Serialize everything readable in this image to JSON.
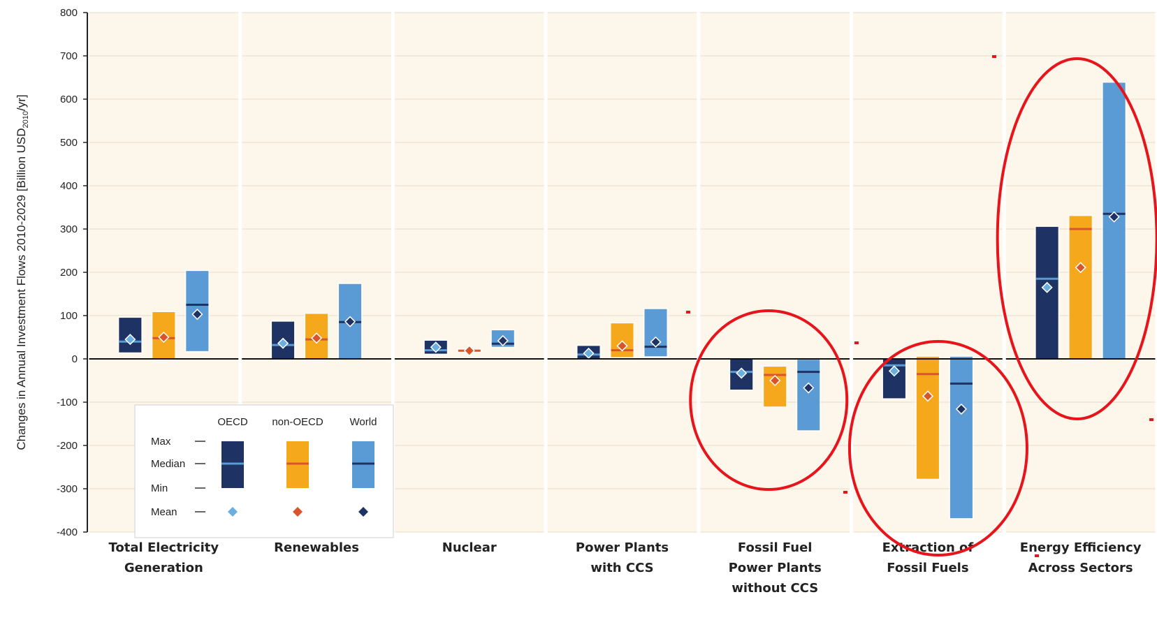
{
  "chart_data": {
    "type": "floating-bar",
    "ylabel": "Changes in Annual Investment Flows 2010-2029 [Billion USD",
    "ylabel_sub": "2010",
    "ylabel_end": "/yr]",
    "ylim": [
      -400,
      800
    ],
    "yticks": [
      800,
      700,
      600,
      500,
      400,
      300,
      200,
      100,
      0,
      -100,
      -200,
      -300,
      -400
    ],
    "series_names": [
      "OECD",
      "non-OECD",
      "World"
    ],
    "colors": {
      "OECD": "#1f3264",
      "non-OECD": "#f5a81c",
      "World": "#5b9bd5",
      "OECD_marker": "#6baee0",
      "non-OECD_marker": "#d9532b",
      "World_marker": "#1f3264",
      "OECD_median": "#5b9bd5",
      "non-OECD_median": "#d9532b",
      "World_median": "#1f3264",
      "panel": "#fdf6ea",
      "highlight": "#e8141b"
    },
    "categories": [
      {
        "label": [
          "Total Electricity",
          "Generation"
        ],
        "bars": [
          {
            "min": 15,
            "max": 95,
            "median": 40,
            "mean": 45
          },
          {
            "min": 0,
            "max": 108,
            "median": 48,
            "mean": 50
          },
          {
            "min": 18,
            "max": 203,
            "median": 125,
            "mean": 103
          }
        ]
      },
      {
        "label": [
          "Renewables"
        ],
        "bars": [
          {
            "min": 0,
            "max": 86,
            "median": 32,
            "mean": 36
          },
          {
            "min": 0,
            "max": 104,
            "median": 45,
            "mean": 48
          },
          {
            "min": 0,
            "max": 173,
            "median": 85,
            "mean": 86
          }
        ]
      },
      {
        "label": [
          "Nuclear"
        ],
        "bars": [
          {
            "min": 12,
            "max": 42,
            "median": 20,
            "mean": 27
          },
          {
            "min": 18,
            "max": 20,
            "median": 19,
            "mean": 19
          },
          {
            "min": 28,
            "max": 66,
            "median": 35,
            "mean": 42
          }
        ]
      },
      {
        "label": [
          "Power Plants",
          "with CCS"
        ],
        "bars": [
          {
            "min": 0,
            "max": 30,
            "median": 10,
            "mean": 13
          },
          {
            "min": 4,
            "max": 82,
            "median": 20,
            "mean": 30
          },
          {
            "min": 6,
            "max": 115,
            "median": 28,
            "mean": 39
          }
        ]
      },
      {
        "label": [
          "Fossil Fuel",
          "Power Plants",
          "without CCS"
        ],
        "bars": [
          {
            "min": -71,
            "max": 0,
            "median": -30,
            "mean": -33
          },
          {
            "min": -110,
            "max": -18,
            "median": -37,
            "mean": -50
          },
          {
            "min": -165,
            "max": -2,
            "median": -30,
            "mean": -67
          }
        ]
      },
      {
        "label": [
          "Extraction of",
          "Fossil Fuels"
        ],
        "bars": [
          {
            "min": -91,
            "max": 0,
            "median": -15,
            "mean": -28
          },
          {
            "min": -277,
            "max": 5,
            "median": -35,
            "mean": -86
          },
          {
            "min": -368,
            "max": 5,
            "median": -57,
            "mean": -116
          }
        ]
      },
      {
        "label": [
          "Energy Efficiency",
          "Across Sectors"
        ],
        "bars": [
          {
            "min": 0,
            "max": 305,
            "median": 185,
            "mean": 165
          },
          {
            "min": 0,
            "max": 330,
            "median": 300,
            "mean": 211
          },
          {
            "min": 0,
            "max": 638,
            "median": 335,
            "mean": 328
          }
        ]
      }
    ],
    "legend": {
      "headers": [
        "OECD",
        "non-OECD",
        "World"
      ],
      "rows": [
        "Max",
        "Median",
        "Min",
        "Mean"
      ]
    }
  }
}
